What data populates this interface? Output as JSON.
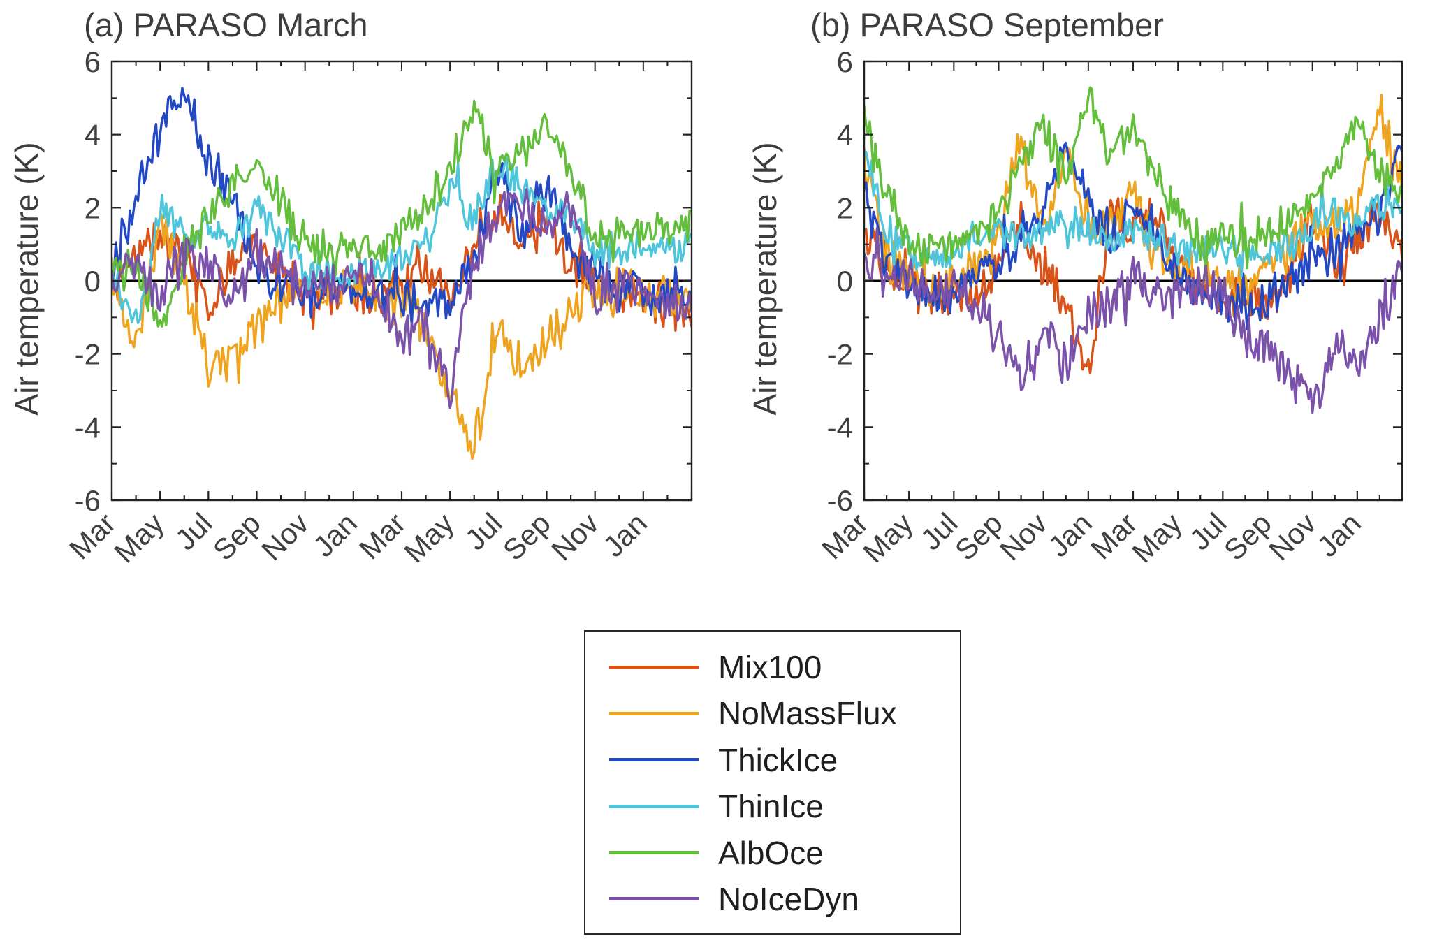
{
  "chart_data": [
    {
      "type": "line",
      "title": "(a) PARASO March",
      "xlabel": "",
      "ylabel": "Air temperature (K)",
      "ylim": [
        -6,
        6
      ],
      "y_ticks": [
        -6,
        -4,
        -2,
        0,
        2,
        4,
        6
      ],
      "months_span": 24,
      "x_tick_labels": [
        "Mar",
        "May",
        "Jul",
        "Sep",
        "Nov",
        "Jan",
        "Mar",
        "May",
        "Jul",
        "Sep",
        "Nov",
        "Jan"
      ],
      "grid": false,
      "zero_line": true,
      "zero_line_color": "#000000",
      "axis_color": "#222222",
      "tick_label_color": "#3f3f3f",
      "series": [
        {
          "name": "Mix100",
          "color": "#D95319",
          "noise": 0.5,
          "monthly": [
            -0.2,
            0.6,
            1.2,
            0.8,
            -0.8,
            0.6,
            0.8,
            0.2,
            -0.4,
            -0.4,
            -0.3,
            -0.4,
            -0.3,
            0.5,
            -0.8,
            1.2,
            1.8,
            1.2,
            1.5,
            0.4,
            -0.2,
            -0.4,
            -0.5,
            -0.7,
            -0.9
          ]
        },
        {
          "name": "NoMassFlux",
          "color": "#EEA41F",
          "noise": 0.55,
          "monthly": [
            -0.3,
            -1.6,
            1.5,
            0.2,
            -2.6,
            -2.2,
            -1.2,
            -0.6,
            -0.4,
            -0.3,
            -0.3,
            -0.5,
            -0.7,
            -1.2,
            -3.2,
            -4.6,
            -1.2,
            -2.4,
            -1.8,
            -0.8,
            -0.5,
            -0.3,
            -0.4,
            -0.5,
            -0.5
          ]
        },
        {
          "name": "ThickIce",
          "color": "#2248C4",
          "noise": 0.5,
          "monthly": [
            0.1,
            2.2,
            4.2,
            5.2,
            3.2,
            2.2,
            0.4,
            -0.2,
            -0.4,
            -0.3,
            -0.3,
            -0.4,
            -0.5,
            -0.7,
            -0.6,
            0.6,
            3.2,
            1.2,
            2.6,
            0.8,
            0.1,
            -0.2,
            -0.3,
            -0.5,
            -0.5
          ]
        },
        {
          "name": "ThinIce",
          "color": "#4EC5DB",
          "noise": 0.4,
          "monthly": [
            0.3,
            -1.4,
            2.0,
            1.2,
            1.4,
            1.0,
            2.0,
            1.2,
            0.3,
            0.2,
            0.1,
            0.3,
            0.6,
            1.0,
            2.6,
            1.8,
            3.2,
            2.4,
            2.0,
            1.8,
            0.8,
            0.9,
            1.0,
            0.9,
            0.9
          ]
        },
        {
          "name": "AlbOce",
          "color": "#63BE3C",
          "noise": 0.45,
          "monthly": [
            0.2,
            0.4,
            -1.2,
            0.8,
            1.8,
            2.6,
            3.0,
            2.2,
            1.0,
            0.8,
            1.1,
            0.9,
            1.4,
            1.9,
            3.2,
            4.6,
            3.0,
            3.6,
            4.4,
            3.0,
            1.2,
            1.2,
            1.4,
            1.3,
            1.5
          ]
        },
        {
          "name": "NoIceDyn",
          "color": "#7A52AA",
          "noise": 0.55,
          "monthly": [
            0.1,
            0.4,
            -0.4,
            0.7,
            0.4,
            -0.5,
            0.7,
            0.4,
            -0.3,
            -0.2,
            0.0,
            -0.3,
            -1.5,
            -1.2,
            -3.0,
            0.4,
            2.0,
            2.2,
            1.4,
            1.8,
            -0.4,
            0.2,
            -0.4,
            -0.6,
            -0.5
          ]
        }
      ]
    },
    {
      "type": "line",
      "title": "(b) PARASO September",
      "xlabel": "",
      "ylabel": "Air temperature (K)",
      "ylim": [
        -6,
        6
      ],
      "y_ticks": [
        -6,
        -4,
        -2,
        0,
        2,
        4,
        6
      ],
      "months_span": 24,
      "x_tick_labels": [
        "Mar",
        "May",
        "Jul",
        "Sep",
        "Nov",
        "Jan",
        "Mar",
        "May",
        "Jul",
        "Sep",
        "Nov",
        "Jan"
      ],
      "grid": false,
      "zero_line": true,
      "zero_line_color": "#000000",
      "axis_color": "#222222",
      "tick_label_color": "#3f3f3f",
      "series": [
        {
          "name": "Mix100",
          "color": "#D95319",
          "noise": 0.5,
          "monthly": [
            1.5,
            0.4,
            0.0,
            -0.3,
            -0.4,
            -0.3,
            0.4,
            1.6,
            0.4,
            -0.6,
            -2.6,
            1.8,
            1.4,
            1.8,
            0.4,
            -0.4,
            -0.5,
            -0.3,
            -0.7,
            0.2,
            1.8,
            0.4,
            1.2,
            1.8,
            1.0
          ]
        },
        {
          "name": "NoMassFlux",
          "color": "#EEA41F",
          "noise": 0.55,
          "monthly": [
            3.2,
            0.6,
            0.2,
            -0.2,
            0.0,
            0.4,
            1.2,
            3.8,
            1.2,
            3.6,
            1.8,
            1.4,
            2.2,
            1.0,
            0.3,
            0.0,
            0.2,
            -0.3,
            0.4,
            0.8,
            1.8,
            1.4,
            2.0,
            4.6,
            2.4
          ]
        },
        {
          "name": "ThickIce",
          "color": "#2248C4",
          "noise": 0.5,
          "monthly": [
            2.4,
            0.4,
            -0.2,
            -0.3,
            -0.4,
            0.2,
            0.4,
            1.0,
            1.8,
            3.6,
            2.2,
            1.0,
            2.2,
            1.4,
            0.2,
            -0.3,
            -0.5,
            -0.7,
            -0.5,
            0.0,
            0.4,
            0.9,
            1.4,
            1.8,
            3.8
          ]
        },
        {
          "name": "ThinIce",
          "color": "#4EC5DB",
          "noise": 0.4,
          "monthly": [
            3.8,
            1.4,
            0.8,
            0.5,
            0.8,
            1.1,
            1.4,
            1.2,
            1.4,
            1.7,
            1.4,
            1.0,
            1.4,
            1.1,
            0.8,
            0.8,
            1.0,
            0.8,
            0.8,
            1.0,
            1.4,
            1.9,
            1.5,
            2.1,
            1.9
          ]
        },
        {
          "name": "AlbOce",
          "color": "#63BE3C",
          "noise": 0.45,
          "monthly": [
            4.6,
            2.4,
            1.0,
            0.8,
            1.0,
            1.2,
            1.9,
            3.2,
            4.2,
            2.8,
            5.0,
            3.4,
            4.2,
            2.8,
            1.9,
            1.0,
            1.2,
            1.2,
            1.3,
            1.7,
            2.4,
            3.2,
            4.2,
            2.8,
            2.6
          ]
        },
        {
          "name": "NoIceDyn",
          "color": "#7A52AA",
          "noise": 0.55,
          "monthly": [
            0.5,
            0.2,
            0.0,
            -0.2,
            -0.3,
            -0.7,
            -1.4,
            -2.6,
            -1.4,
            -2.4,
            -1.0,
            -0.5,
            0.2,
            -0.5,
            -0.3,
            -0.2,
            -0.5,
            -1.4,
            -1.9,
            -2.4,
            -3.6,
            -1.9,
            -2.3,
            -1.0,
            0.4
          ]
        }
      ]
    }
  ],
  "legend": {
    "items": [
      {
        "label": "Mix100",
        "color": "#D95319"
      },
      {
        "label": "NoMassFlux",
        "color": "#EEA41F"
      },
      {
        "label": "ThickIce",
        "color": "#2248C4"
      },
      {
        "label": "ThinIce",
        "color": "#4EC5DB"
      },
      {
        "label": "AlbOce",
        "color": "#63BE3C"
      },
      {
        "label": "NoIceDyn",
        "color": "#7A52AA"
      }
    ]
  }
}
